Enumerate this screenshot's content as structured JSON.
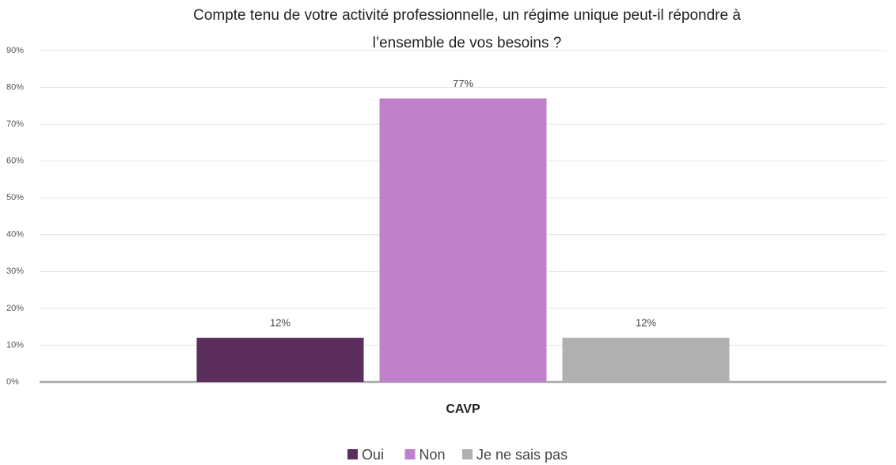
{
  "chart_data": {
    "type": "bar",
    "title": [
      "Compte tenu de votre activité professionnelle, un régime unique peut-il répondre à",
      "l’ensemble de vos besoins ?"
    ],
    "categories": [
      "CAVP"
    ],
    "series": [
      {
        "name": "Oui",
        "color": "#5b2e5e",
        "values": [
          12
        ],
        "value_labels": [
          "12%"
        ]
      },
      {
        "name": "Non",
        "color": "#bf81c9",
        "values": [
          77
        ],
        "value_labels": [
          "77%"
        ]
      },
      {
        "name": "Je ne sais pas",
        "color": "#b0b0b0",
        "values": [
          12
        ],
        "value_labels": [
          "12%"
        ]
      }
    ],
    "ylim": [
      0,
      90
    ],
    "yticks": [
      {
        "value": 0,
        "label": "0%"
      },
      {
        "value": 10,
        "label": "10%"
      },
      {
        "value": 20,
        "label": "20%"
      },
      {
        "value": 30,
        "label": "30%"
      },
      {
        "value": 40,
        "label": "40%"
      },
      {
        "value": 50,
        "label": "50%"
      },
      {
        "value": 60,
        "label": "60%"
      },
      {
        "value": 70,
        "label": "70%"
      },
      {
        "value": 80,
        "label": "80%"
      },
      {
        "value": 90,
        "label": "90%"
      }
    ],
    "grid": true,
    "legend": "bottom"
  }
}
